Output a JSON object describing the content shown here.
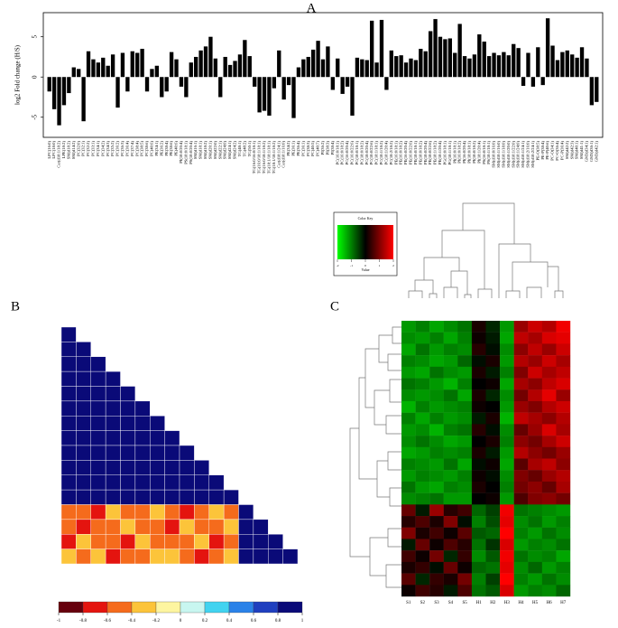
{
  "chart_data": [
    {
      "type": "bar",
      "panel": "A",
      "ylabel": "log2 Fold change (H/S)",
      "color": "#000000",
      "ylim": [
        -7.5,
        8
      ],
      "yticks": [
        -5,
        0,
        5
      ],
      "categories": [
        "LPC(16:0)",
        "LPC(18:0)",
        "Cer(d18:1/18:2)",
        "LPE(18:2)",
        "SM(d18:2)",
        "SM(d14:2)",
        "PC(32:0)",
        "PC(32:1)",
        "PC(32:2)",
        "PC(33:1)",
        "PC(34:1)",
        "PC(34:2)",
        "PC(34:3)",
        "PC(35:2)",
        "PC(36:2)",
        "PC(36:3)",
        "PC(36:4)",
        "PC(37:4)",
        "PC(38:4)",
        "PC(38:5)",
        "PC(38:6)",
        "PC(40:6)",
        "PE(34:1)",
        "PE(36:2)",
        "PE(38:4)",
        "PE(38:6)",
        "PE(40:6)",
        "PI(18:0/20:4)",
        "PS(18:0/18:1)",
        "PS(18:0/20:4)",
        "SM(d16:1)",
        "SM(d18:1)",
        "SM(d18:2)",
        "SM(d20:1)",
        "SM(d22:0)",
        "SM(d22:1)",
        "SM(d24:0)",
        "SM(d24:1)",
        "SM(d24:2)",
        "TG(48:1)",
        "TG(48:2)",
        "TG(50:1)",
        "TG(16:0/16:0/18:1)",
        "TG(16:0/18:1/18:1)",
        "TG(16:0/18:1/18:2)",
        "TG(18:1/18:1/18:1)",
        "TG(18:1/18:1/18:2)",
        "Cer(d18:1/24:1)",
        "Cer(d18:1/16:0)",
        "PE(34:2)",
        "PE(36:1)",
        "PE(36:4)",
        "PC(36:1)",
        "PC(38:3)",
        "PC(40:5)",
        "PC(40:7)",
        "PI(36:2)",
        "PI(38:3)",
        "PI(38:4)",
        "PC(16:0/18:1)",
        "PC(16:0/18:2)",
        "PC(16:0/20:4)",
        "PC(16:0/22:6)",
        "PC(18:0/18:1)",
        "PC(18:0/18:2)",
        "PC(18:0/20:4)",
        "PC(18:0/22:6)",
        "PC(18:1/18:1)",
        "PC(18:1/18:2)",
        "PC(18:1/20:4)",
        "PC(18:2/18:2)",
        "PE(16:0/18:1)",
        "PE(16:0/18:2)",
        "PE(16:0/20:4)",
        "PE(16:0/22:6)",
        "PE(18:0/18:1)",
        "PE(18:0/18:2)",
        "PE(18:0/20:4)",
        "PE(18:0/22:6)",
        "PE(18:1/18:2)",
        "PE(18:1/20:4)",
        "PG(16:0/18:1)",
        "PG(18:1/18:1)",
        "PI(16:0/18:1)",
        "PI(16:0/18:2)",
        "PI(16:0/20:4)",
        "PI(18:0/18:1)",
        "PI(18:0/18:2)",
        "PI(18:1/20:4)",
        "PS(16:0/18:1)",
        "PS(18:1/18:1)",
        "SM(d18:0/16:0)",
        "SM(d18:1/16:0)",
        "SM(d18:1/18:0)",
        "SM(d18:1/20:0)",
        "SM(d18:1/22:0)",
        "SM(d18:1/24:0)",
        "SM(d18:1/24:1)",
        "SM(d18:2/16:0)",
        "SM(d18:2/24:1)",
        "PE-O(38:5)",
        "PE-P(38:4)",
        "PE-P(40:6)",
        "PC-O(34:1)",
        "PC-O(36:4)",
        "PC-P(36:4)",
        "SM(d42:2)",
        "SM(d42:3)",
        "SM(d40:1)",
        "SM(d41:1)",
        "GM3(d34:1)",
        "GM3(d36:1)",
        "GM3(d42:1)"
      ],
      "values": [
        -1.8,
        -4,
        -6,
        -3.5,
        -2,
        1.2,
        1,
        -5.5,
        3.2,
        2.2,
        1.8,
        2.4,
        1.4,
        2.8,
        -3.8,
        3,
        -1.8,
        3.2,
        3,
        3.5,
        -1.8,
        1,
        1.4,
        -2.5,
        -1.8,
        3.1,
        2.2,
        -1.2,
        -2.5,
        1.8,
        2.5,
        3.3,
        3.8,
        5,
        2.3,
        -2.5,
        2.5,
        1.5,
        2,
        2.8,
        4.6,
        2.6,
        -1.2,
        -4.4,
        -4.2,
        -4.8,
        -1.4,
        3.3,
        -2.8,
        -1,
        -5.1,
        1.2,
        2.2,
        2.5,
        3.4,
        4.5,
        2.2,
        3.8,
        -1.6,
        2.3,
        -2.1,
        -1.2,
        -4.8,
        2.4,
        2.2,
        2.1,
        7,
        1.8,
        7.1,
        -1.6,
        3.3,
        2.6,
        2.7,
        1.8,
        2.3,
        2.1,
        3.5,
        3.2,
        5.7,
        7.2,
        5,
        4.7,
        4.8,
        3,
        6.6,
        2.6,
        2.3,
        2.8,
        5.3,
        4.4,
        2.6,
        3,
        2.7,
        3.1,
        2.7,
        4.1,
        3.6,
        -1.1,
        3,
        -1.2,
        3.7,
        -1,
        7.3,
        3.9,
        2.1,
        3.1,
        3.3,
        2.8,
        2.4,
        3.7,
        2.3,
        -3.5,
        -3.1
      ]
    },
    {
      "type": "correlation",
      "panel": "B",
      "clim": [
        -1,
        1
      ],
      "cticks": [
        -1,
        -0.8,
        -0.6,
        -0.4,
        -0.2,
        0,
        0.2,
        0.4,
        0.6,
        0.8,
        1
      ],
      "colors": [
        "#67000d",
        "#e4140f",
        "#f56b1c",
        "#fcc43a",
        "#fdf5a0",
        "#c8f6f0",
        "#41d3f0",
        "#2a82e8",
        "#1f3fbf",
        "#0a0a78"
      ],
      "matrix": [
        [
          1
        ],
        [
          0.92,
          1
        ],
        [
          0.9,
          0.94,
          1
        ],
        [
          0.88,
          0.9,
          0.93,
          1
        ],
        [
          0.91,
          0.87,
          0.9,
          0.92,
          1
        ],
        [
          0.85,
          0.9,
          0.88,
          0.9,
          0.93,
          1
        ],
        [
          0.9,
          0.86,
          0.92,
          0.89,
          0.9,
          0.94,
          1
        ],
        [
          0.87,
          0.9,
          0.85,
          0.91,
          0.88,
          0.9,
          0.93,
          1
        ],
        [
          0.89,
          0.88,
          0.9,
          0.86,
          0.92,
          0.89,
          0.9,
          0.94,
          1
        ],
        [
          0.86,
          0.91,
          0.89,
          0.9,
          0.87,
          0.92,
          0.88,
          0.9,
          0.93,
          1
        ],
        [
          0.9,
          0.87,
          0.92,
          0.88,
          0.9,
          0.86,
          0.91,
          0.89,
          0.9,
          0.94,
          1
        ],
        [
          0.88,
          0.9,
          0.86,
          0.91,
          0.89,
          0.9,
          0.87,
          0.92,
          0.88,
          0.9,
          0.93,
          1
        ],
        [
          -0.6,
          -0.5,
          -0.7,
          -0.4,
          -0.6,
          -0.5,
          -0.3,
          -0.6,
          -0.7,
          -0.5,
          -0.4,
          -0.6,
          1
        ],
        [
          -0.5,
          -0.7,
          -0.6,
          -0.5,
          -0.3,
          -0.6,
          -0.5,
          -0.7,
          -0.4,
          -0.6,
          -0.5,
          -0.3,
          0.88,
          1
        ],
        [
          -0.7,
          -0.4,
          -0.5,
          -0.6,
          -0.7,
          -0.3,
          -0.6,
          -0.5,
          -0.6,
          -0.4,
          -0.7,
          -0.5,
          0.86,
          0.9,
          1
        ],
        [
          -0.4,
          -0.6,
          -0.3,
          -0.7,
          -0.5,
          -0.6,
          -0.4,
          -0.3,
          -0.5,
          -0.7,
          -0.6,
          -0.4,
          0.84,
          0.87,
          0.91,
          1
        ]
      ]
    },
    {
      "type": "heatmap",
      "panel": "C",
      "colorkey_title": "Color Key",
      "colorkey_label": "Value",
      "clim": [
        -2,
        2
      ],
      "cticks": [
        -2,
        -1,
        0,
        1,
        2
      ],
      "colors": [
        "#00ff00",
        "#000000",
        "#ff0000"
      ],
      "columns": [
        "S1",
        "S2",
        "S3",
        "S4",
        "S5",
        "H1",
        "H2",
        "H3",
        "H4",
        "H5",
        "H6",
        "H7"
      ],
      "matrix": [
        [
          -1.2,
          -1,
          -1.3,
          -1.1,
          -0.9,
          0.2,
          -0.3,
          -1.2,
          1.2,
          1.6,
          1.4,
          1.9
        ],
        [
          -1.1,
          -1.2,
          -1,
          -1.3,
          -1,
          0.1,
          -0.2,
          -1.3,
          1.5,
          1.3,
          1.7,
          1.8
        ],
        [
          -1.3,
          -0.9,
          -1.2,
          -1,
          -1.1,
          0.3,
          -0.1,
          -1.1,
          1.1,
          1.5,
          1.2,
          1.6
        ],
        [
          -1,
          -1.1,
          -1.3,
          -1.2,
          -0.8,
          -0.1,
          0.2,
          -1.2,
          1.4,
          1.2,
          1.6,
          1.3
        ],
        [
          -1.2,
          -1.3,
          -0.9,
          -1.1,
          -1.2,
          0.2,
          -0.2,
          -1,
          1,
          1.6,
          1.3,
          1.5
        ],
        [
          -0.9,
          -1,
          -1.2,
          -1.4,
          -1,
          0,
          0.1,
          -1.3,
          1.3,
          1.1,
          1.5,
          1.7
        ],
        [
          -1.1,
          -1.2,
          -1.1,
          -0.9,
          -1.3,
          0.2,
          -0.3,
          -1.1,
          0.9,
          1.4,
          1.8,
          1.2
        ],
        [
          -1.4,
          -1,
          -1.2,
          -1.1,
          -1,
          0.1,
          0,
          -1.2,
          1.2,
          1,
          1.4,
          1.6
        ],
        [
          -1,
          -1.3,
          -1,
          -1.2,
          -1.1,
          -0.2,
          0.2,
          -1.4,
          1.5,
          1.3,
          1.1,
          1.4
        ],
        [
          -1.2,
          -1.1,
          -1.4,
          -1,
          -0.9,
          0.3,
          -0.1,
          -1.1,
          0.8,
          1.2,
          1.7,
          1.3
        ],
        [
          -1.1,
          -0.9,
          -1.1,
          -1.3,
          -1.2,
          0,
          0.2,
          -1,
          1.1,
          0.9,
          1.3,
          1.6
        ],
        [
          -1.3,
          -1.2,
          -1,
          -1.1,
          -1,
          0.2,
          -0.2,
          -1.2,
          1.4,
          1.1,
          0.9,
          1.2
        ],
        [
          -1,
          -1.1,
          -1.2,
          -0.9,
          -1.3,
          -0.1,
          0.1,
          -1.3,
          0.7,
          1.3,
          1.5,
          1.1
        ],
        [
          -1.2,
          -1,
          -1.1,
          -1.2,
          -1,
          0.1,
          -0.1,
          -1.1,
          1,
          0.8,
          1.2,
          1.4
        ],
        [
          -0.9,
          -1.2,
          -1.3,
          -1,
          -1.1,
          0.2,
          0,
          -1,
          0.9,
          1.1,
          0.8,
          1.3
        ],
        [
          -1.1,
          -1,
          -0.9,
          -1.2,
          -1.2,
          0,
          0.1,
          -1.2,
          0.6,
          1,
          1.1,
          0.9
        ],
        [
          0.8,
          -0.2,
          1.2,
          0.3,
          0.5,
          -0.8,
          -0.5,
          1.9,
          -0.9,
          -1,
          -1.1,
          -1.2
        ],
        [
          0.3,
          0.6,
          0.2,
          1,
          -0.1,
          -1,
          -0.6,
          1.8,
          -1.1,
          -0.9,
          -1.2,
          -1
        ],
        [
          1,
          0.2,
          0.5,
          0.1,
          0.7,
          -0.7,
          -0.8,
          2,
          -1,
          -1.2,
          -0.9,
          -1.1
        ],
        [
          -0.2,
          0.8,
          0.1,
          0.6,
          0.3,
          -0.9,
          -0.4,
          1.7,
          -1.2,
          -1,
          -1.1,
          -0.9
        ],
        [
          0.5,
          0.1,
          0.9,
          -0.3,
          0.4,
          -1.1,
          -0.7,
          1.9,
          -0.9,
          -1.1,
          -1,
          -1.3
        ],
        [
          0.2,
          0.4,
          -0.1,
          0.8,
          0.1,
          -0.8,
          -0.9,
          1.8,
          -1.1,
          -0.8,
          -1.2,
          -1
        ],
        [
          0.7,
          -0.3,
          0.4,
          0.2,
          0.9,
          -1,
          -0.5,
          2,
          -1,
          -1.2,
          -0.9,
          -1.1
        ],
        [
          0.1,
          0.5,
          0.3,
          -0.2,
          0.6,
          -0.9,
          -0.7,
          1.7,
          -1.2,
          -1,
          -1.1,
          -0.8
        ]
      ]
    }
  ]
}
